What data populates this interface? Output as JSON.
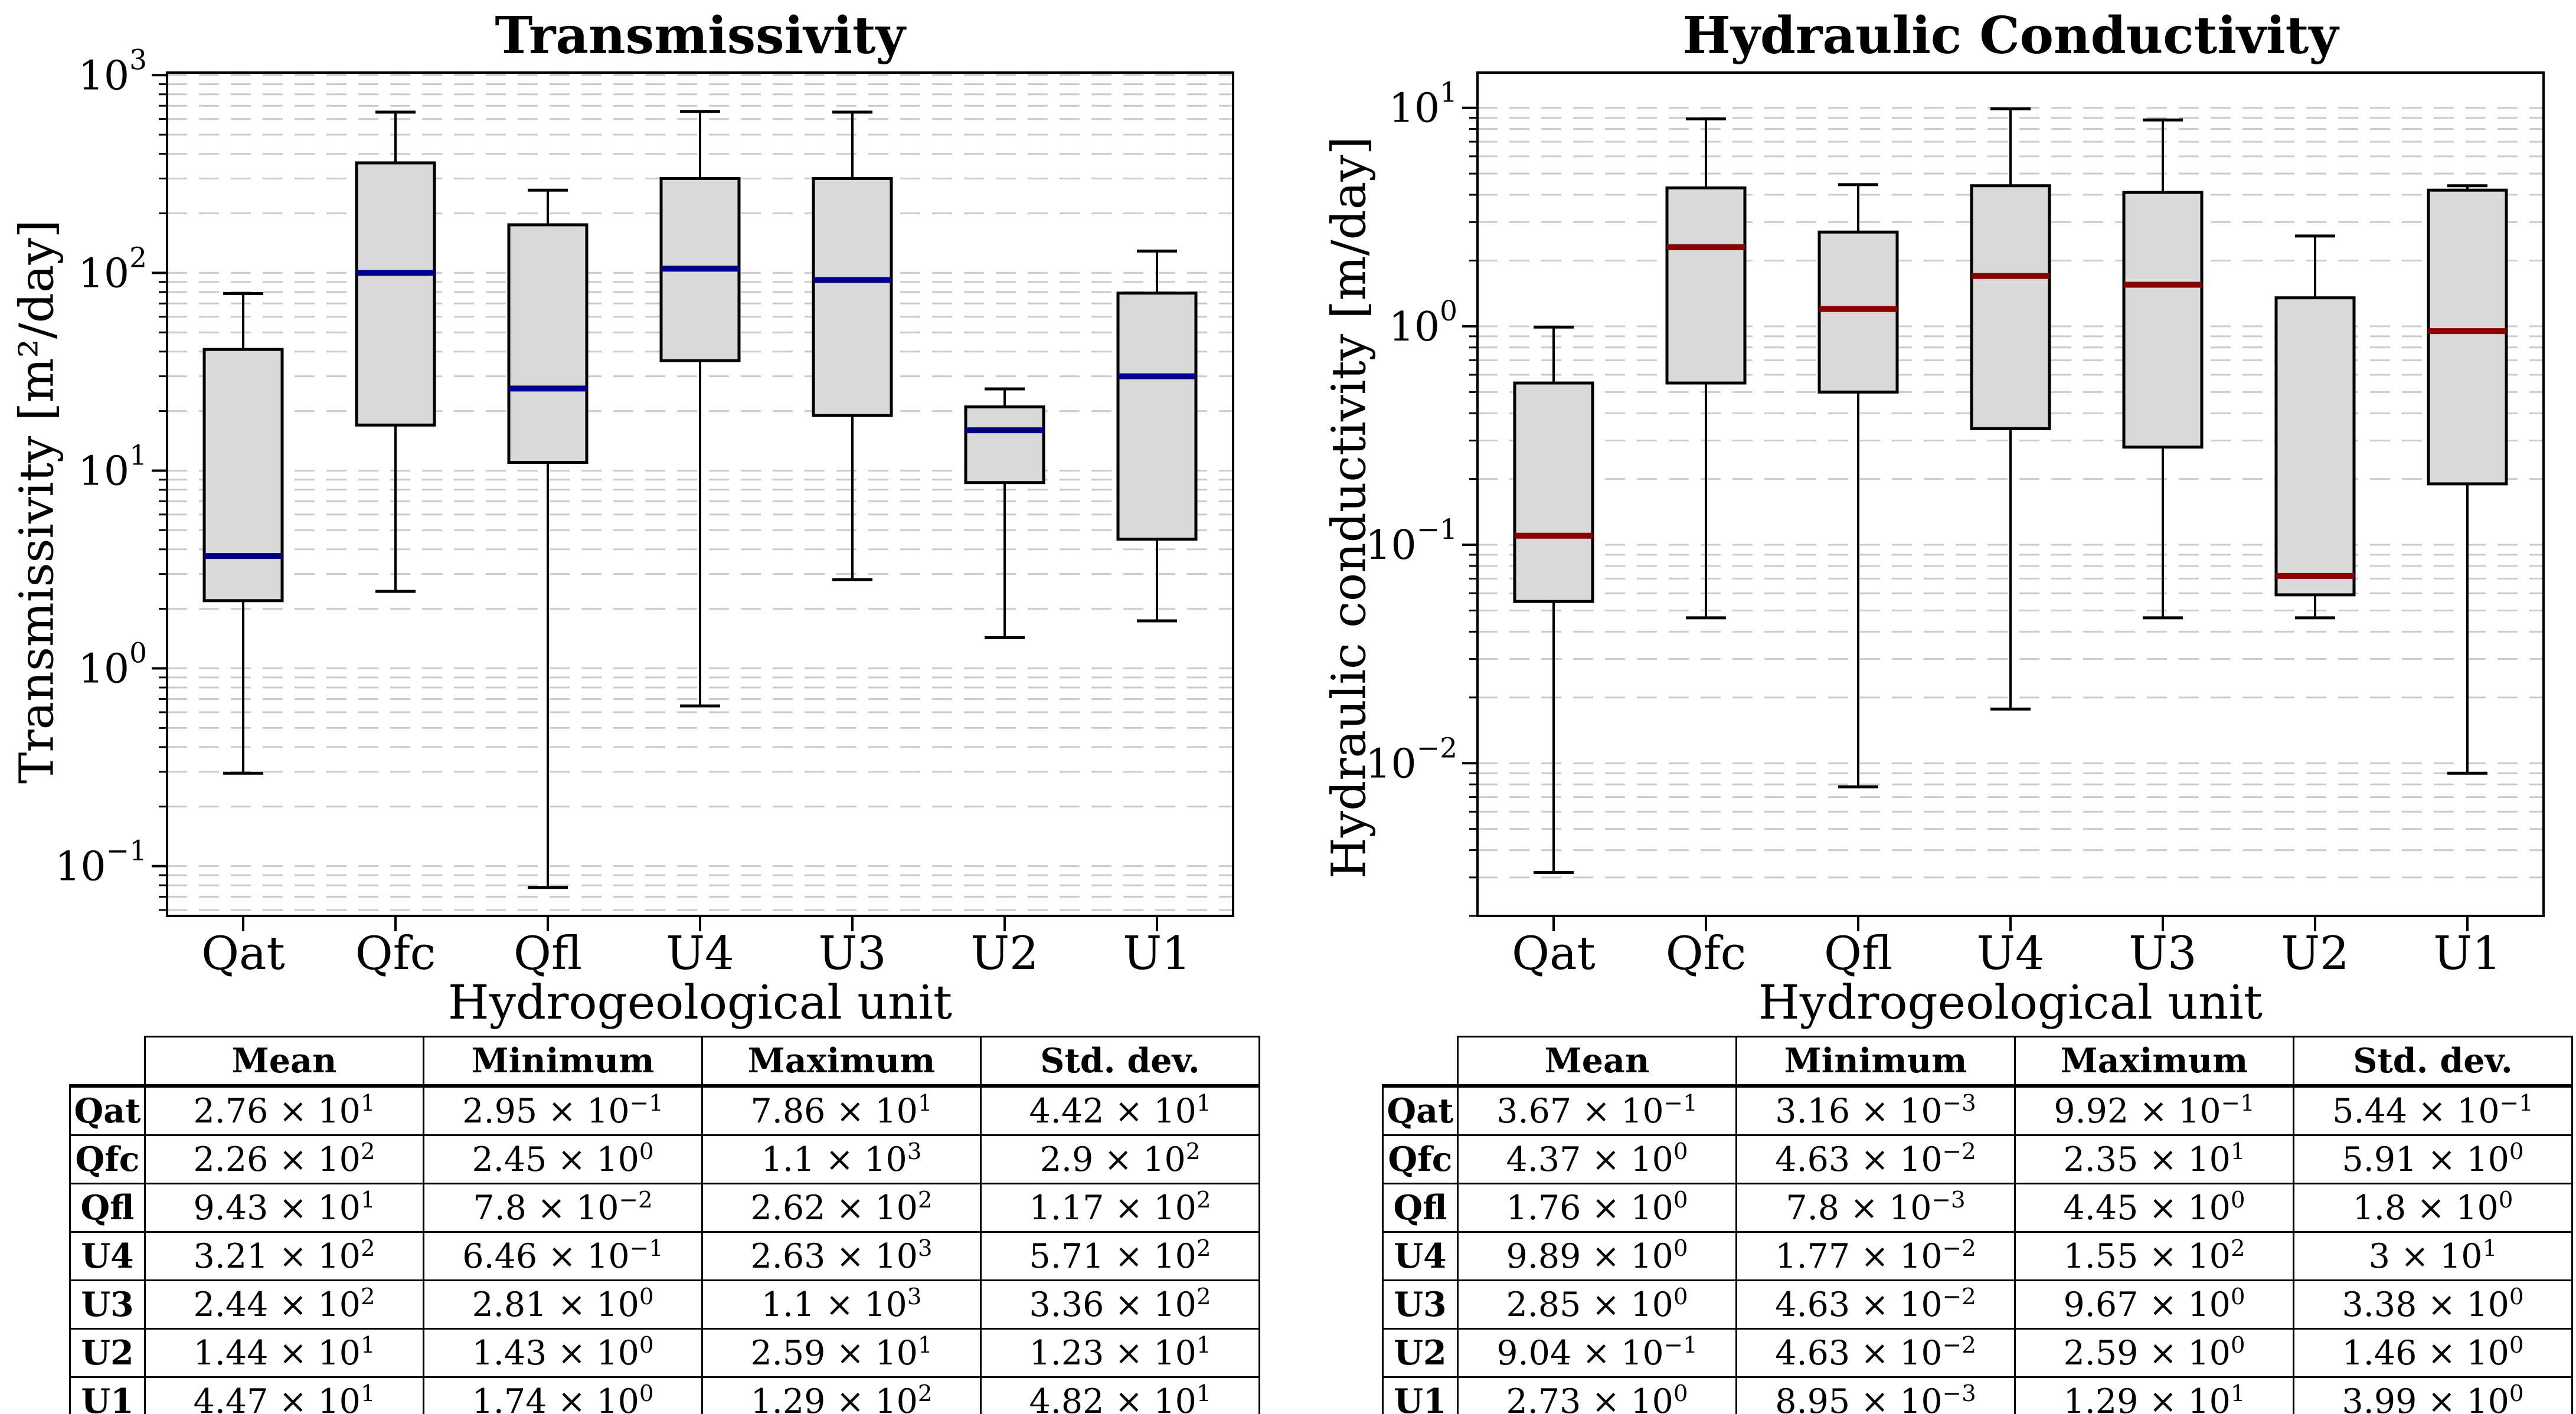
{
  "figure": {
    "background": "#ffffff"
  },
  "chart_data": [
    {
      "type": "box",
      "title": "Transmissivity",
      "ylabel": "Transmissivity [m²/day]",
      "xlabel": "Hydrogeological unit",
      "categories": [
        "Qat",
        "Qfc",
        "Qfl",
        "U4",
        "U3",
        "U2",
        "U1"
      ],
      "yscale": "log",
      "ylim": [
        0.056,
        1030
      ],
      "ytick_exponents": [
        3,
        2,
        1,
        0,
        -1
      ],
      "grid": "horizontal dashed, major+minor",
      "legend": "none",
      "median_color": "#00008b",
      "box_fill": "#d9d9d9",
      "boxes": [
        {
          "label": "Qat",
          "whislo": 0.295,
          "q1": 2.2,
          "med": 3.7,
          "q3": 41,
          "whishi": 78.6
        },
        {
          "label": "Qfc",
          "whislo": 2.45,
          "q1": 17,
          "med": 100,
          "q3": 360,
          "whishi": 650
        },
        {
          "label": "Qfl",
          "whislo": 0.078,
          "q1": 11,
          "med": 26,
          "q3": 175,
          "whishi": 262
        },
        {
          "label": "U4",
          "whislo": 0.646,
          "q1": 36,
          "med": 105,
          "q3": 300,
          "whishi": 655
        },
        {
          "label": "U3",
          "whislo": 2.81,
          "q1": 19,
          "med": 92,
          "q3": 300,
          "whishi": 650
        },
        {
          "label": "U2",
          "whislo": 1.43,
          "q1": 8.7,
          "med": 16,
          "q3": 21,
          "whishi": 25.9
        },
        {
          "label": "U1",
          "whislo": 1.74,
          "q1": 4.5,
          "med": 30,
          "q3": 79,
          "whishi": 129
        }
      ],
      "stats_table": {
        "corner": "",
        "headers": [
          "Mean",
          "Minimum",
          "Maximum",
          "Std. dev."
        ],
        "rows": [
          {
            "label": "Qat",
            "cells": [
              {
                "m": "2.76",
                "e": "1"
              },
              {
                "m": "2.95",
                "e": "−1"
              },
              {
                "m": "7.86",
                "e": "1"
              },
              {
                "m": "4.42",
                "e": "1"
              }
            ]
          },
          {
            "label": "Qfc",
            "cells": [
              {
                "m": "2.26",
                "e": "2"
              },
              {
                "m": "2.45",
                "e": "0"
              },
              {
                "m": "1.1",
                "e": "3"
              },
              {
                "m": "2.9",
                "e": "2"
              }
            ]
          },
          {
            "label": "Qfl",
            "cells": [
              {
                "m": "9.43",
                "e": "1"
              },
              {
                "m": "7.8",
                "e": "−2"
              },
              {
                "m": "2.62",
                "e": "2"
              },
              {
                "m": "1.17",
                "e": "2"
              }
            ]
          },
          {
            "label": "U4",
            "cells": [
              {
                "m": "3.21",
                "e": "2"
              },
              {
                "m": "6.46",
                "e": "−1"
              },
              {
                "m": "2.63",
                "e": "3"
              },
              {
                "m": "5.71",
                "e": "2"
              }
            ]
          },
          {
            "label": "U3",
            "cells": [
              {
                "m": "2.44",
                "e": "2"
              },
              {
                "m": "2.81",
                "e": "0"
              },
              {
                "m": "1.1",
                "e": "3"
              },
              {
                "m": "3.36",
                "e": "2"
              }
            ]
          },
          {
            "label": "U2",
            "cells": [
              {
                "m": "1.44",
                "e": "1"
              },
              {
                "m": "1.43",
                "e": "0"
              },
              {
                "m": "2.59",
                "e": "1"
              },
              {
                "m": "1.23",
                "e": "1"
              }
            ]
          },
          {
            "label": "U1",
            "cells": [
              {
                "m": "4.47",
                "e": "1"
              },
              {
                "m": "1.74",
                "e": "0"
              },
              {
                "m": "1.29",
                "e": "2"
              },
              {
                "m": "4.82",
                "e": "1"
              }
            ]
          }
        ]
      }
    },
    {
      "type": "box",
      "title": "Hydraulic Conductivity",
      "ylabel": "Hydraulic conductivity [m/day]",
      "xlabel": "Hydrogeological unit",
      "categories": [
        "Qat",
        "Qfc",
        "Qfl",
        "U4",
        "U3",
        "U2",
        "U1"
      ],
      "yscale": "log",
      "ylim": [
        0.002,
        14.5
      ],
      "ytick_exponents": [
        1,
        0,
        -1,
        -2
      ],
      "grid": "horizontal dashed, major+minor",
      "legend": "none",
      "median_color": "#8b0000",
      "box_fill": "#d9d9d9",
      "boxes": [
        {
          "label": "Qat",
          "whislo": 0.00316,
          "q1": 0.055,
          "med": 0.11,
          "q3": 0.55,
          "whishi": 0.992
        },
        {
          "label": "Qfc",
          "whislo": 0.0463,
          "q1": 0.55,
          "med": 2.3,
          "q3": 4.3,
          "whishi": 8.9
        },
        {
          "label": "Qfl",
          "whislo": 0.0078,
          "q1": 0.5,
          "med": 1.2,
          "q3": 2.7,
          "whishi": 4.45
        },
        {
          "label": "U4",
          "whislo": 0.0177,
          "q1": 0.34,
          "med": 1.7,
          "q3": 4.4,
          "whishi": 9.9
        },
        {
          "label": "U3",
          "whislo": 0.0463,
          "q1": 0.28,
          "med": 1.55,
          "q3": 4.1,
          "whishi": 8.8
        },
        {
          "label": "U2",
          "whislo": 0.0463,
          "q1": 0.059,
          "med": 0.072,
          "q3": 1.35,
          "whishi": 2.59
        },
        {
          "label": "U1",
          "whislo": 0.009,
          "q1": 0.19,
          "med": 0.95,
          "q3": 4.2,
          "whishi": 4.4
        }
      ],
      "stats_table": {
        "corner": "",
        "headers": [
          "Mean",
          "Minimum",
          "Maximum",
          "Std. dev."
        ],
        "rows": [
          {
            "label": "Qat",
            "cells": [
              {
                "m": "3.67",
                "e": "−1"
              },
              {
                "m": "3.16",
                "e": "−3"
              },
              {
                "m": "9.92",
                "e": "−1"
              },
              {
                "m": "5.44",
                "e": "−1"
              }
            ]
          },
          {
            "label": "Qfc",
            "cells": [
              {
                "m": "4.37",
                "e": "0"
              },
              {
                "m": "4.63",
                "e": "−2"
              },
              {
                "m": "2.35",
                "e": "1"
              },
              {
                "m": "5.91",
                "e": "0"
              }
            ]
          },
          {
            "label": "Qfl",
            "cells": [
              {
                "m": "1.76",
                "e": "0"
              },
              {
                "m": "7.8",
                "e": "−3"
              },
              {
                "m": "4.45",
                "e": "0"
              },
              {
                "m": "1.8",
                "e": "0"
              }
            ]
          },
          {
            "label": "U4",
            "cells": [
              {
                "m": "9.89",
                "e": "0"
              },
              {
                "m": "1.77",
                "e": "−2"
              },
              {
                "m": "1.55",
                "e": "2"
              },
              {
                "m": "3",
                "e": "1"
              }
            ]
          },
          {
            "label": "U3",
            "cells": [
              {
                "m": "2.85",
                "e": "0"
              },
              {
                "m": "4.63",
                "e": "−2"
              },
              {
                "m": "9.67",
                "e": "0"
              },
              {
                "m": "3.38",
                "e": "0"
              }
            ]
          },
          {
            "label": "U2",
            "cells": [
              {
                "m": "9.04",
                "e": "−1"
              },
              {
                "m": "4.63",
                "e": "−2"
              },
              {
                "m": "2.59",
                "e": "0"
              },
              {
                "m": "1.46",
                "e": "0"
              }
            ]
          },
          {
            "label": "U1",
            "cells": [
              {
                "m": "2.73",
                "e": "0"
              },
              {
                "m": "8.95",
                "e": "−3"
              },
              {
                "m": "1.29",
                "e": "1"
              },
              {
                "m": "3.99",
                "e": "0"
              }
            ]
          }
        ]
      }
    }
  ]
}
